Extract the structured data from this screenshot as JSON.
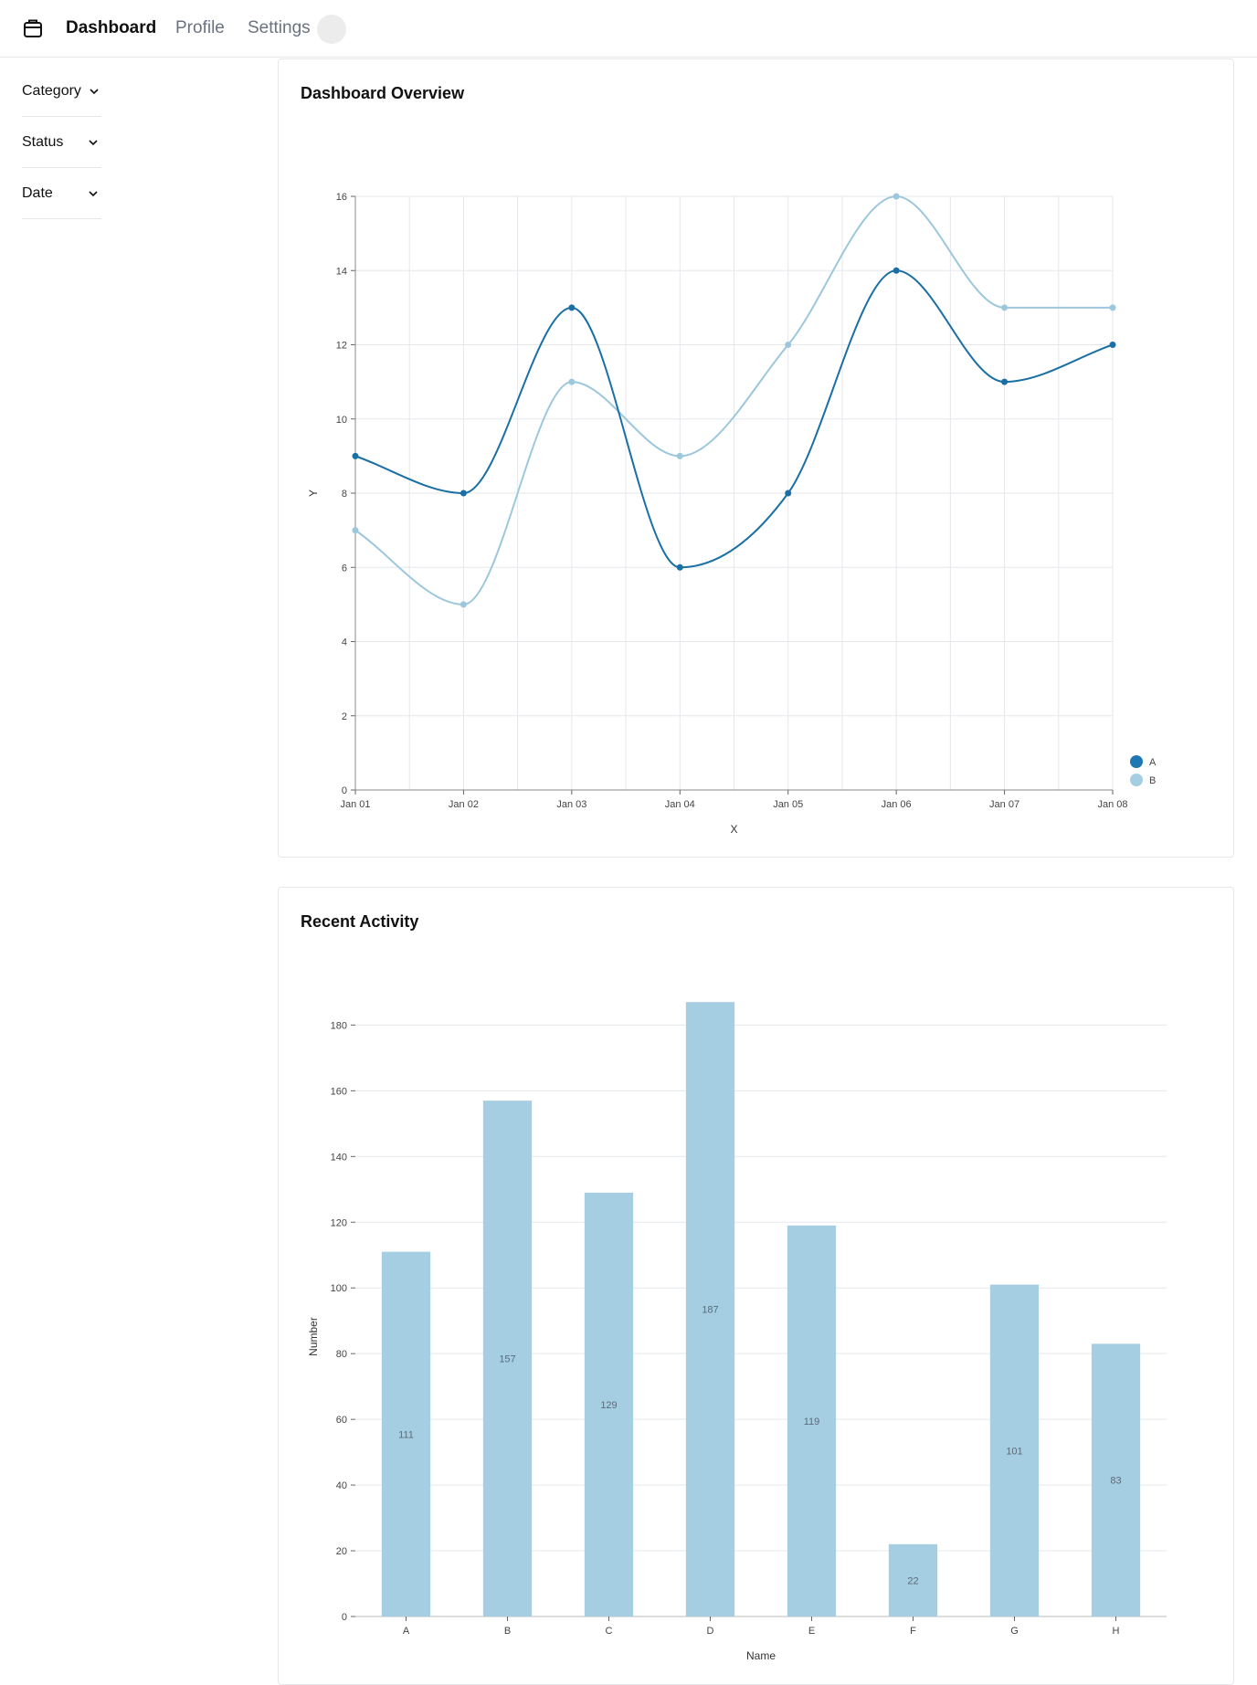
{
  "nav": {
    "items": [
      {
        "label": "Dashboard",
        "active": true
      },
      {
        "label": "Profile",
        "active": false
      },
      {
        "label": "Settings",
        "active": false
      }
    ]
  },
  "sidebar": {
    "filters": [
      {
        "label": "Category"
      },
      {
        "label": "Status"
      },
      {
        "label": "Date"
      }
    ]
  },
  "colors": {
    "series_a": "#1f77b4",
    "series_b": "#a6cee3",
    "bar": "#a6cee3",
    "grid": "#e5e7eb"
  },
  "chart_data": [
    {
      "type": "line",
      "title": "Dashboard Overview",
      "xlabel": "X",
      "ylabel": "Y",
      "categories": [
        "Jan 01",
        "Jan 02",
        "Jan 03",
        "Jan 04",
        "Jan 05",
        "Jan 06",
        "Jan 07",
        "Jan 08"
      ],
      "yticks": [
        0,
        2,
        4,
        6,
        8,
        10,
        12,
        14,
        16
      ],
      "ylim": [
        0,
        16
      ],
      "grid": true,
      "legend": "bottom-right",
      "series": [
        {
          "name": "A",
          "values": [
            9,
            8,
            13,
            6,
            8,
            14,
            11,
            12
          ]
        },
        {
          "name": "B",
          "values": [
            7,
            5,
            11,
            9,
            12,
            16,
            13,
            13
          ]
        }
      ]
    },
    {
      "type": "bar",
      "title": "Recent Activity",
      "xlabel": "Name",
      "ylabel": "Number",
      "categories": [
        "A",
        "B",
        "C",
        "D",
        "E",
        "F",
        "G",
        "H"
      ],
      "values": [
        111,
        157,
        129,
        187,
        119,
        22,
        101,
        83
      ],
      "yticks": [
        0,
        20,
        40,
        60,
        80,
        100,
        120,
        140,
        160,
        180
      ],
      "ylim": [
        0,
        180
      ],
      "grid": true
    }
  ]
}
